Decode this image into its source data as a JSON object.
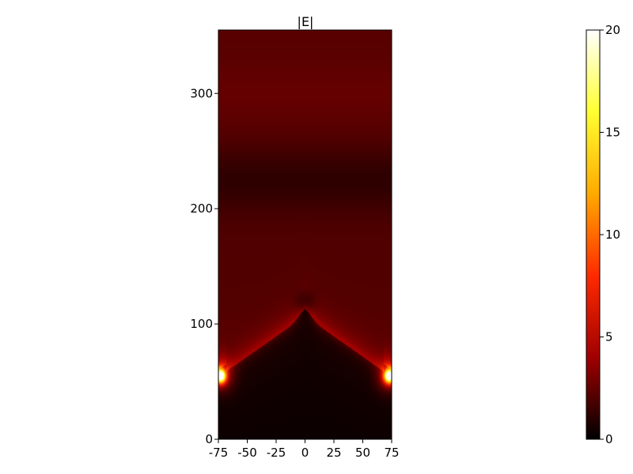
{
  "chart_data": {
    "type": "heatmap",
    "title": "|E|",
    "xlabel": "",
    "ylabel": "",
    "xlim": [
      -75,
      75
    ],
    "ylim": [
      0,
      355
    ],
    "x_ticks": [
      -75,
      -50,
      -25,
      0,
      25,
      50,
      75
    ],
    "x_tick_labels": [
      "-75",
      "-50",
      "-25",
      "0",
      "25",
      "50",
      "75"
    ],
    "y_ticks": [
      0,
      100,
      200,
      300
    ],
    "y_tick_labels": [
      "0",
      "100",
      "200",
      "300"
    ],
    "colormap": "hot",
    "colormap_stops": [
      "#000000",
      "#a00000",
      "#ff2a00",
      "#ffaa00",
      "#ffff30",
      "#ffffff"
    ],
    "color_range": [
      0,
      20
    ],
    "colorbar_ticks": [
      0,
      5,
      10,
      15,
      20
    ],
    "colorbar_tick_labels": [
      "0",
      "5",
      "10",
      "15",
      "20"
    ],
    "grid": false,
    "legend": "none",
    "field_features": {
      "background_level": 2.2,
      "dark_band_center_y": 225,
      "cone_apex": [
        0,
        113
      ],
      "cone_base_halfwidth": 68,
      "cone_base_y": 65,
      "cone_interior_level": 0.3,
      "cone_edge_level": 4.5,
      "hotspots": [
        {
          "x": -73,
          "y": 55,
          "peak": 20
        },
        {
          "x": 73,
          "y": 55,
          "peak": 20
        }
      ]
    }
  }
}
